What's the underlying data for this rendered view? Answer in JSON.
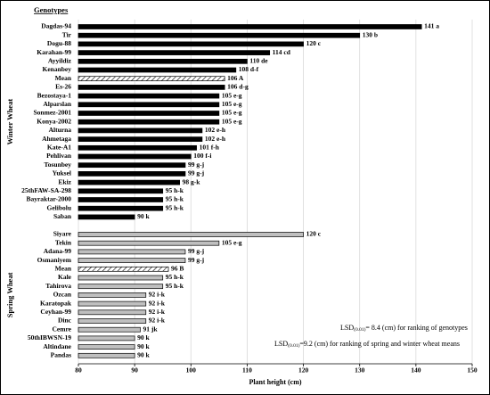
{
  "chart_data": {
    "type": "bar",
    "orientation": "horizontal",
    "header": "Genotypes",
    "x_label": "Plant height (cm)",
    "xlim": [
      80,
      150
    ],
    "xticks": [
      80,
      90,
      100,
      110,
      120,
      130,
      140,
      150
    ],
    "grid": true,
    "groups": [
      {
        "name": "Winter Wheat",
        "color": "#000000",
        "hatched_index": 6,
        "categories": [
          "Dagdas-94",
          "Tir",
          "Dogu-88",
          "Karahan-99",
          "Ayyildiz",
          "Kenanbey",
          "Mean",
          "Es-26",
          "Bezostaya-1",
          "Alparslan",
          "Sonmez-2001",
          "Konya-2002",
          "Alturna",
          "Ahmetaga",
          "Kate-A1",
          "Pehlivan",
          "Tosunbey",
          "Yuksel",
          "Ekiz",
          "25thFAW-SA-298",
          "Bayraktar-2000",
          "Gelibolu",
          "Saban"
        ],
        "values": [
          141,
          130,
          120,
          114,
          110,
          108,
          106,
          106,
          105,
          105,
          105,
          105,
          102,
          102,
          101,
          100,
          99,
          99,
          98,
          95,
          95,
          95,
          90
        ],
        "value_labels": [
          "141 a",
          "130 b",
          "120 c",
          "114 cd",
          "110 de",
          "108 d-f",
          "106 A",
          "106 d-g",
          "105 e-g",
          "105 e-g",
          "105 e-g",
          "105 e-g",
          "102 e-h",
          "102 e-h",
          "101 f-h",
          "100 f-i",
          "99 g-j",
          "99 g-j",
          "98 g-k",
          "95 h-k",
          "95 h-k",
          "95 h-k",
          "90 k"
        ]
      },
      {
        "name": "Spring Wheat",
        "color": "#bfbfbf",
        "hatched_index": 4,
        "categories": [
          "Siyare",
          "Tekin",
          "Adana-99",
          "Osmaniyem",
          "Mean",
          "Kale",
          "Tahirova",
          "Ozcan",
          "Karatopak",
          "Ceyhan-99",
          "Dinc",
          "Cemre",
          "50thIBWSN-19",
          "Altindane",
          "Pandas"
        ],
        "values": [
          120,
          105,
          99,
          99,
          96,
          95,
          95,
          92,
          92,
          92,
          92,
          91,
          90,
          90,
          90
        ],
        "value_labels": [
          "120 c",
          "105 e-g",
          "99 g-j",
          "99 g-j",
          "96 B",
          "95 h-k",
          "95 h-k",
          "92 i-k",
          "92 i-k",
          "92 i-k",
          "92 i-k",
          "91 jk",
          "90 k",
          "90 k",
          "90 k"
        ]
      }
    ],
    "annotations": [
      {
        "main": "LSD",
        "sub": "(0.01)",
        "rest": "= 8.4 (cm) for ranking of genotypes"
      },
      {
        "main": "LSD",
        "sub": "(0.01)",
        "rest": "=9.2 (cm) for ranking of spring and winter wheat means"
      }
    ]
  }
}
